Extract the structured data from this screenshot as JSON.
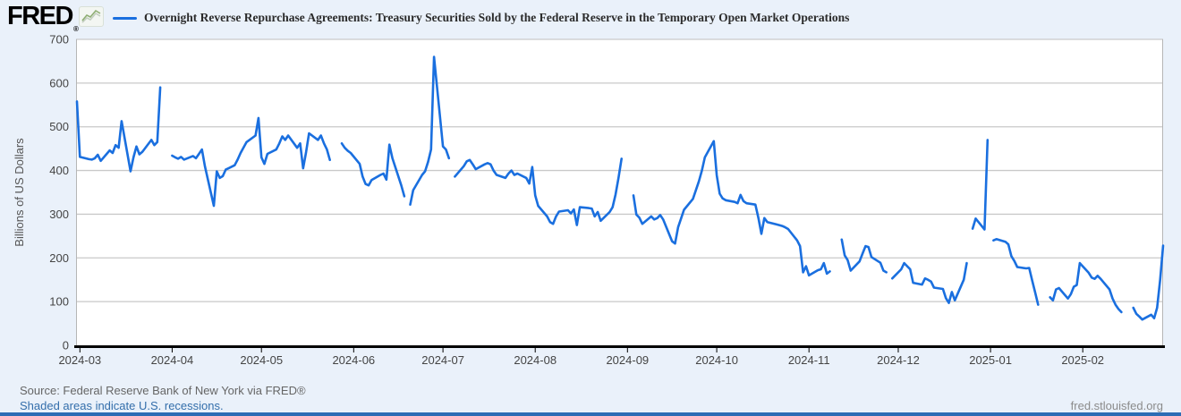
{
  "header": {
    "logo_text": "FRED",
    "registered_mark": "®",
    "legend_label": "Overnight Reverse Repurchase Agreements: Treasury Securities Sold by the Federal Reserve in the Temporary Open Market Operations"
  },
  "footer": {
    "source_line": "Source: Federal Reserve Bank of New York via FRED®",
    "recession_note": "Shaded areas indicate U.S. recessions.",
    "site_link": "fred.stlouisfed.org"
  },
  "colors": {
    "series_blue": "#1a6fdf",
    "page_bg": "#eaf1fa",
    "plot_bg": "#ffffff",
    "gridline": "#c9c9c9",
    "plot_border": "#b6b6b6",
    "axis_black": "#000000",
    "tick_text": "#444444",
    "ylabel_text": "#555555",
    "title_text": "#2b2b2b",
    "source_text": "#666666",
    "link_blue": "#336eab",
    "site_text": "#8b8b8b",
    "bottom_bar": "#2c6cb5"
  },
  "chart_data": {
    "type": "line",
    "title": "Overnight Reverse Repurchase Agreements: Treasury Securities Sold by the Federal Reserve in the Temporary Open Market Operations",
    "xlabel": "",
    "ylabel": "Billions of US Dollars",
    "ylim": [
      0,
      700
    ],
    "y_ticks": [
      0,
      100,
      200,
      300,
      400,
      500,
      600,
      700
    ],
    "x_tick_labels": [
      "2024-03",
      "2024-04",
      "2024-05",
      "2024-06",
      "2024-07",
      "2024-08",
      "2024-09",
      "2024-10",
      "2024-11",
      "2024-12",
      "2025-01",
      "2025-02"
    ],
    "x_range": [
      "2024-02-29",
      "2025-02-28"
    ],
    "grid": "horizontal",
    "legend_position": "top-left",
    "frequency": "daily, gaps on federal holidays",
    "series": [
      {
        "name": "Overnight Reverse Repurchase Agreements: Treasury Securities Sold by the Federal Reserve in the Temporary Open Market Operations",
        "color": "#1a6fdf",
        "points": [
          [
            "2024-02-29",
            558
          ],
          [
            "2024-03-01",
            431
          ],
          [
            "2024-03-04",
            426
          ],
          [
            "2024-03-05",
            425
          ],
          [
            "2024-03-06",
            428
          ],
          [
            "2024-03-07",
            436
          ],
          [
            "2024-03-08",
            422
          ],
          [
            "2024-03-11",
            446
          ],
          [
            "2024-03-12",
            440
          ],
          [
            "2024-03-13",
            458
          ],
          [
            "2024-03-14",
            452
          ],
          [
            "2024-03-15",
            513
          ],
          [
            "2024-03-18",
            398
          ],
          [
            "2024-03-19",
            430
          ],
          [
            "2024-03-20",
            455
          ],
          [
            "2024-03-21",
            437
          ],
          [
            "2024-03-22",
            443
          ],
          [
            "2024-03-25",
            470
          ],
          [
            "2024-03-26",
            458
          ],
          [
            "2024-03-27",
            465
          ],
          [
            "2024-03-28",
            590
          ],
          [
            "2024-04-01",
            434
          ],
          [
            "2024-04-02",
            430
          ],
          [
            "2024-04-03",
            427
          ],
          [
            "2024-04-04",
            431
          ],
          [
            "2024-04-05",
            425
          ],
          [
            "2024-04-08",
            433
          ],
          [
            "2024-04-09",
            428
          ],
          [
            "2024-04-10",
            438
          ],
          [
            "2024-04-11",
            448
          ],
          [
            "2024-04-12",
            410
          ],
          [
            "2024-04-15",
            319
          ],
          [
            "2024-04-16",
            398
          ],
          [
            "2024-04-17",
            383
          ],
          [
            "2024-04-18",
            387
          ],
          [
            "2024-04-19",
            402
          ],
          [
            "2024-04-22",
            412
          ],
          [
            "2024-04-23",
            425
          ],
          [
            "2024-04-24",
            440
          ],
          [
            "2024-04-25",
            453
          ],
          [
            "2024-04-26",
            465
          ],
          [
            "2024-04-29",
            480
          ],
          [
            "2024-04-30",
            520
          ],
          [
            "2024-05-01",
            430
          ],
          [
            "2024-05-02",
            415
          ],
          [
            "2024-05-03",
            438
          ],
          [
            "2024-05-06",
            448
          ],
          [
            "2024-05-07",
            462
          ],
          [
            "2024-05-08",
            478
          ],
          [
            "2024-05-09",
            470
          ],
          [
            "2024-05-10",
            480
          ],
          [
            "2024-05-13",
            452
          ],
          [
            "2024-05-14",
            462
          ],
          [
            "2024-05-15",
            405
          ],
          [
            "2024-05-16",
            442
          ],
          [
            "2024-05-17",
            485
          ],
          [
            "2024-05-20",
            470
          ],
          [
            "2024-05-21",
            480
          ],
          [
            "2024-05-22",
            462
          ],
          [
            "2024-05-23",
            448
          ],
          [
            "2024-05-24",
            424
          ],
          [
            "2024-05-28",
            462
          ],
          [
            "2024-05-29",
            452
          ],
          [
            "2024-05-30",
            445
          ],
          [
            "2024-05-31",
            440
          ],
          [
            "2024-06-03",
            415
          ],
          [
            "2024-06-04",
            386
          ],
          [
            "2024-06-05",
            369
          ],
          [
            "2024-06-06",
            366
          ],
          [
            "2024-06-07",
            378
          ],
          [
            "2024-06-10",
            390
          ],
          [
            "2024-06-11",
            393
          ],
          [
            "2024-06-12",
            379
          ],
          [
            "2024-06-13",
            459
          ],
          [
            "2024-06-14",
            428
          ],
          [
            "2024-06-17",
            366
          ],
          [
            "2024-06-18",
            341
          ],
          [
            "2024-06-20",
            322
          ],
          [
            "2024-06-21",
            355
          ],
          [
            "2024-06-24",
            390
          ],
          [
            "2024-06-25",
            398
          ],
          [
            "2024-06-26",
            420
          ],
          [
            "2024-06-27",
            448
          ],
          [
            "2024-06-28",
            660
          ],
          [
            "2024-07-01",
            455
          ],
          [
            "2024-07-02",
            448
          ],
          [
            "2024-07-03",
            428
          ],
          [
            "2024-07-05",
            386
          ],
          [
            "2024-07-08",
            410
          ],
          [
            "2024-07-09",
            421
          ],
          [
            "2024-07-10",
            424
          ],
          [
            "2024-07-11",
            414
          ],
          [
            "2024-07-12",
            403
          ],
          [
            "2024-07-15",
            414
          ],
          [
            "2024-07-16",
            417
          ],
          [
            "2024-07-17",
            414
          ],
          [
            "2024-07-18",
            400
          ],
          [
            "2024-07-19",
            390
          ],
          [
            "2024-07-22",
            383
          ],
          [
            "2024-07-23",
            393
          ],
          [
            "2024-07-24",
            400
          ],
          [
            "2024-07-25",
            390
          ],
          [
            "2024-07-26",
            393
          ],
          [
            "2024-07-29",
            383
          ],
          [
            "2024-07-30",
            370
          ],
          [
            "2024-07-31",
            408
          ],
          [
            "2024-08-01",
            343
          ],
          [
            "2024-08-02",
            319
          ],
          [
            "2024-08-05",
            295
          ],
          [
            "2024-08-06",
            282
          ],
          [
            "2024-08-07",
            278
          ],
          [
            "2024-08-08",
            295
          ],
          [
            "2024-08-09",
            306
          ],
          [
            "2024-08-12",
            309
          ],
          [
            "2024-08-13",
            302
          ],
          [
            "2024-08-14",
            311
          ],
          [
            "2024-08-15",
            275
          ],
          [
            "2024-08-16",
            316
          ],
          [
            "2024-08-19",
            314
          ],
          [
            "2024-08-20",
            313
          ],
          [
            "2024-08-21",
            295
          ],
          [
            "2024-08-22",
            305
          ],
          [
            "2024-08-23",
            285
          ],
          [
            "2024-08-26",
            305
          ],
          [
            "2024-08-27",
            316
          ],
          [
            "2024-08-28",
            345
          ],
          [
            "2024-08-29",
            383
          ],
          [
            "2024-08-30",
            427
          ],
          [
            "2024-09-03",
            343
          ],
          [
            "2024-09-04",
            299
          ],
          [
            "2024-09-05",
            292
          ],
          [
            "2024-09-06",
            278
          ],
          [
            "2024-09-09",
            295
          ],
          [
            "2024-09-10",
            288
          ],
          [
            "2024-09-11",
            291
          ],
          [
            "2024-09-12",
            298
          ],
          [
            "2024-09-13",
            288
          ],
          [
            "2024-09-16",
            238
          ],
          [
            "2024-09-17",
            233
          ],
          [
            "2024-09-18",
            270
          ],
          [
            "2024-09-19",
            290
          ],
          [
            "2024-09-20",
            310
          ],
          [
            "2024-09-23",
            335
          ],
          [
            "2024-09-24",
            355
          ],
          [
            "2024-09-25",
            375
          ],
          [
            "2024-09-26",
            400
          ],
          [
            "2024-09-27",
            430
          ],
          [
            "2024-09-30",
            467
          ],
          [
            "2024-10-01",
            389
          ],
          [
            "2024-10-02",
            347
          ],
          [
            "2024-10-03",
            336
          ],
          [
            "2024-10-04",
            332
          ],
          [
            "2024-10-07",
            328
          ],
          [
            "2024-10-08",
            325
          ],
          [
            "2024-10-09",
            344
          ],
          [
            "2024-10-10",
            330
          ],
          [
            "2024-10-11",
            325
          ],
          [
            "2024-10-14",
            322
          ],
          [
            "2024-10-15",
            291
          ],
          [
            "2024-10-16",
            255
          ],
          [
            "2024-10-17",
            291
          ],
          [
            "2024-10-18",
            282
          ],
          [
            "2024-10-21",
            277
          ],
          [
            "2024-10-22",
            275
          ],
          [
            "2024-10-23",
            273
          ],
          [
            "2024-10-24",
            270
          ],
          [
            "2024-10-25",
            266
          ],
          [
            "2024-10-28",
            240
          ],
          [
            "2024-10-29",
            227
          ],
          [
            "2024-10-30",
            167
          ],
          [
            "2024-10-31",
            181
          ],
          [
            "2024-11-01",
            160
          ],
          [
            "2024-11-04",
            172
          ],
          [
            "2024-11-05",
            174
          ],
          [
            "2024-11-06",
            188
          ],
          [
            "2024-11-07",
            164
          ],
          [
            "2024-11-08",
            169
          ],
          [
            "2024-11-12",
            242
          ],
          [
            "2024-11-13",
            206
          ],
          [
            "2024-11-14",
            195
          ],
          [
            "2024-11-15",
            171
          ],
          [
            "2024-11-18",
            192
          ],
          [
            "2024-11-19",
            210
          ],
          [
            "2024-11-20",
            227
          ],
          [
            "2024-11-21",
            225
          ],
          [
            "2024-11-22",
            202
          ],
          [
            "2024-11-25",
            189
          ],
          [
            "2024-11-26",
            171
          ],
          [
            "2024-11-27",
            167
          ],
          [
            "2024-11-29",
            153
          ],
          [
            "2024-12-02",
            174
          ],
          [
            "2024-12-03",
            188
          ],
          [
            "2024-12-04",
            181
          ],
          [
            "2024-12-05",
            174
          ],
          [
            "2024-12-06",
            143
          ],
          [
            "2024-12-09",
            139
          ],
          [
            "2024-12-10",
            153
          ],
          [
            "2024-12-11",
            150
          ],
          [
            "2024-12-12",
            146
          ],
          [
            "2024-12-13",
            132
          ],
          [
            "2024-12-16",
            129
          ],
          [
            "2024-12-17",
            108
          ],
          [
            "2024-12-18",
            97
          ],
          [
            "2024-12-19",
            122
          ],
          [
            "2024-12-20",
            103
          ],
          [
            "2024-12-23",
            150
          ],
          [
            "2024-12-24",
            188
          ],
          [
            "2024-12-26",
            267
          ],
          [
            "2024-12-27",
            290
          ],
          [
            "2024-12-30",
            265
          ],
          [
            "2024-12-31",
            470
          ],
          [
            "2025-01-02",
            240
          ],
          [
            "2025-01-03",
            243
          ],
          [
            "2025-01-06",
            237
          ],
          [
            "2025-01-07",
            231
          ],
          [
            "2025-01-08",
            204
          ],
          [
            "2025-01-09",
            193
          ],
          [
            "2025-01-10",
            179
          ],
          [
            "2025-01-13",
            176
          ],
          [
            "2025-01-14",
            177
          ],
          [
            "2025-01-15",
            148
          ],
          [
            "2025-01-16",
            121
          ],
          [
            "2025-01-17",
            93
          ],
          [
            "2025-01-21",
            110
          ],
          [
            "2025-01-22",
            103
          ],
          [
            "2025-01-23",
            128
          ],
          [
            "2025-01-24",
            131
          ],
          [
            "2025-01-27",
            107
          ],
          [
            "2025-01-28",
            117
          ],
          [
            "2025-01-29",
            134
          ],
          [
            "2025-01-30",
            138
          ],
          [
            "2025-01-31",
            188
          ],
          [
            "2025-02-03",
            166
          ],
          [
            "2025-02-04",
            155
          ],
          [
            "2025-02-05",
            152
          ],
          [
            "2025-02-06",
            159
          ],
          [
            "2025-02-07",
            152
          ],
          [
            "2025-02-10",
            128
          ],
          [
            "2025-02-11",
            107
          ],
          [
            "2025-02-12",
            93
          ],
          [
            "2025-02-13",
            83
          ],
          [
            "2025-02-14",
            76
          ],
          [
            "2025-02-18",
            86
          ],
          [
            "2025-02-19",
            72
          ],
          [
            "2025-02-20",
            66
          ],
          [
            "2025-02-21",
            59
          ],
          [
            "2025-02-24",
            70
          ],
          [
            "2025-02-25",
            62
          ],
          [
            "2025-02-26",
            86
          ],
          [
            "2025-02-27",
            150
          ],
          [
            "2025-02-28",
            228
          ]
        ]
      }
    ]
  }
}
